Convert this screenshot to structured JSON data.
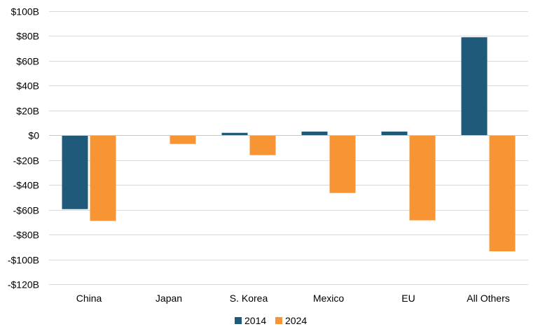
{
  "chart_data": {
    "type": "bar",
    "title": "",
    "xlabel": "",
    "ylabel": "",
    "categories": [
      "China",
      "Japan",
      "S. Korea",
      "Mexico",
      "EU",
      "All Others"
    ],
    "series": [
      {
        "name": "2014",
        "color": "#1f5a7a",
        "values": [
          -59.5,
          0,
          2,
          3,
          3,
          79
        ]
      },
      {
        "name": "2024",
        "color": "#f79433",
        "values": [
          -69,
          -7,
          -16,
          -46.5,
          -68.5,
          -93.5
        ]
      }
    ],
    "ylim": [
      -120,
      100
    ],
    "yticks": [
      100,
      80,
      60,
      40,
      20,
      0,
      -20,
      -40,
      -60,
      -80,
      -100,
      -120
    ],
    "ytick_labels": [
      "$100B",
      "$80B",
      "$60B",
      "$40B",
      "$20B",
      "$0",
      "-$20B",
      "-$40B",
      "-$60B",
      "-$80B",
      "-$100B",
      "-$120B"
    ],
    "grid": true,
    "legend_position": "bottom-center"
  }
}
